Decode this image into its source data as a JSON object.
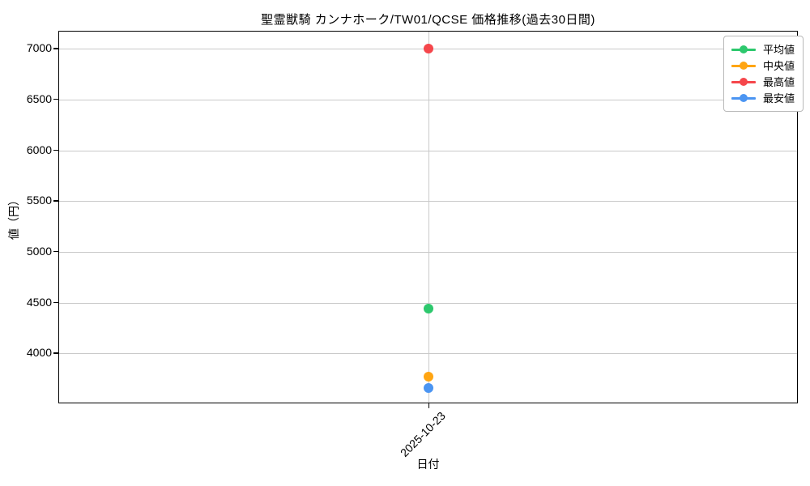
{
  "title": "聖霊獣騎 カンナホーク/TW01/QCSE 価格推移(過去30日間)",
  "chart_data": {
    "type": "line",
    "title": "聖霊獣騎 カンナホーク/TW01/QCSE 価格推移(過去30日間)",
    "xlabel": "日付",
    "ylabel": "値（円）",
    "x": [
      "2025-10-23"
    ],
    "series": [
      {
        "name": "平均値",
        "color": "#2dc86d",
        "values": [
          4440
        ]
      },
      {
        "name": "中央値",
        "color": "#ffa512",
        "values": [
          3770
        ]
      },
      {
        "name": "最高値",
        "color": "#f5464b",
        "values": [
          7000
        ]
      },
      {
        "name": "最安値",
        "color": "#4b95f2",
        "values": [
          3660
        ]
      }
    ],
    "ylim": [
      3500,
      7170
    ],
    "yticks": [
      4000,
      4500,
      5000,
      5500,
      6000,
      6500,
      7000
    ],
    "grid": true,
    "grid_color": "#c9c9c9",
    "axis_color": "#000000",
    "legend_position": "upper right",
    "background_color": "#ffffff"
  }
}
